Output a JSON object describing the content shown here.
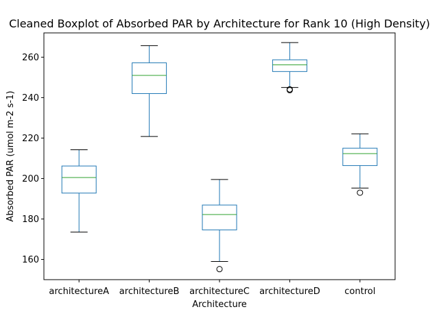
{
  "chart_data": {
    "type": "boxplot",
    "title": "Cleaned Boxplot of Absorbed PAR by Architecture for Rank 10 (High Density)",
    "xlabel": "Architecture",
    "ylabel": "Absorbed PAR (umol m-2 s-1)",
    "ylim": [
      150,
      272
    ],
    "yticks": [
      160,
      180,
      200,
      220,
      240,
      260
    ],
    "grid": false,
    "categories": [
      "architectureA",
      "architectureB",
      "architectureC",
      "architectureD",
      "control"
    ],
    "boxes": [
      {
        "name": "architectureA",
        "whisker_low": 173.5,
        "q1": 192.8,
        "median": 200.5,
        "q3": 206.2,
        "whisker_high": 214.2,
        "outliers": []
      },
      {
        "name": "architectureB",
        "whisker_low": 220.8,
        "q1": 242.0,
        "median": 251.0,
        "q3": 257.2,
        "whisker_high": 265.7,
        "outliers": []
      },
      {
        "name": "architectureC",
        "whisker_low": 159.0,
        "q1": 174.6,
        "median": 182.2,
        "q3": 186.9,
        "whisker_high": 199.5,
        "outliers": [
          155.2
        ]
      },
      {
        "name": "architectureD",
        "whisker_low": 245.0,
        "q1": 252.9,
        "median": 256.2,
        "q3": 258.7,
        "whisker_high": 267.2,
        "outliers": [
          243.7,
          244.1
        ]
      },
      {
        "name": "control",
        "whisker_low": 195.3,
        "q1": 206.4,
        "median": 212.3,
        "q3": 215.0,
        "whisker_high": 222.1,
        "outliers": [
          193.0
        ]
      }
    ],
    "colors": {
      "box": "#1f77b4",
      "median": "#2ca02c",
      "whisker_cap": "#000000",
      "outlier": "#000000"
    }
  }
}
